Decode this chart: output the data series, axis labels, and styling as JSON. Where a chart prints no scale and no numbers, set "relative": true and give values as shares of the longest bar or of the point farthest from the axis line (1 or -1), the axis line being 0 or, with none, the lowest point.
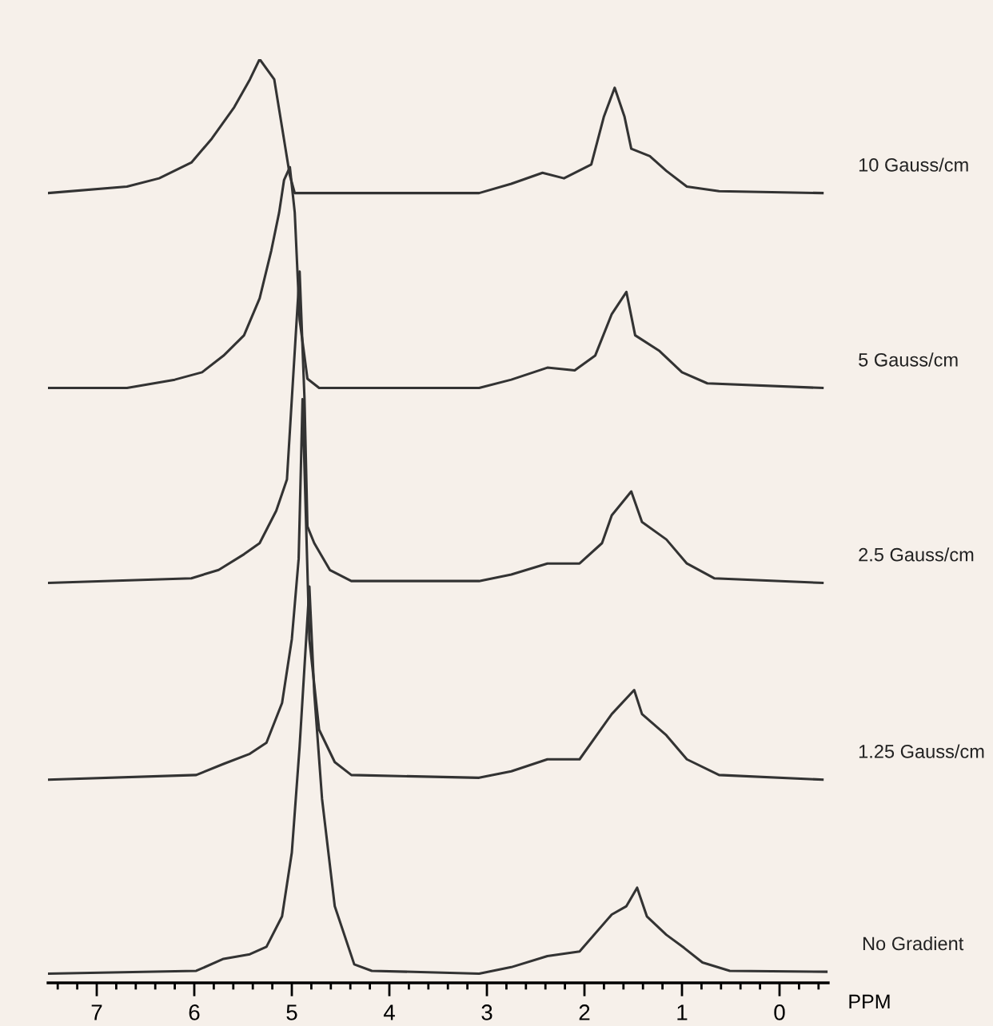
{
  "chart_data": {
    "type": "line",
    "relative": true,
    "xlabel": "PPM",
    "xlim": [
      7.5,
      -0.5
    ],
    "xticks": [
      {
        "value": 7.4,
        "label": null
      },
      {
        "value": 7.2,
        "label": null
      },
      7,
      {
        "value": 6.8,
        "label": null
      },
      {
        "value": 6.6,
        "label": null
      },
      {
        "value": 6.4,
        "label": null
      },
      {
        "value": 6.2,
        "label": null
      },
      6,
      {
        "value": 5.8,
        "label": null
      },
      {
        "value": 5.6,
        "label": null
      },
      {
        "value": 5.4,
        "label": null
      },
      {
        "value": 5.2,
        "label": null
      },
      5,
      {
        "value": 4.8,
        "label": null
      },
      {
        "value": 4.6,
        "label": null
      },
      {
        "value": 4.4,
        "label": null
      },
      {
        "value": 4.2,
        "label": null
      },
      4,
      {
        "value": 3.8,
        "label": null
      },
      {
        "value": 3.6,
        "label": null
      },
      {
        "value": 3.4,
        "label": null
      },
      {
        "value": 3.2,
        "label": null
      },
      3,
      {
        "value": 2.8,
        "label": null
      },
      {
        "value": 2.6,
        "label": null
      },
      {
        "value": 2.4,
        "label": null
      },
      {
        "value": 2.2,
        "label": null
      },
      2,
      {
        "value": 1.8,
        "label": null
      },
      {
        "value": 1.6,
        "label": null
      },
      {
        "value": 1.4,
        "label": null
      },
      {
        "value": 1.2,
        "label": null
      },
      1,
      {
        "value": 0.8,
        "label": null
      },
      {
        "value": 0.6,
        "label": null
      },
      {
        "value": 0.4,
        "label": null
      },
      {
        "value": 0.2,
        "label": null
      },
      0,
      {
        "value": -0.2,
        "label": null
      },
      {
        "value": -0.4,
        "label": null
      }
    ],
    "tick_labels": "x",
    "legend": false,
    "series": [
      {
        "name": "10 Gauss/cm",
        "color": "#333333",
        "x": [
          7.5,
          6.69,
          6.36,
          6.03,
          5.82,
          5.59,
          5.43,
          5.33,
          5.18,
          5.1,
          5.02,
          4.97,
          3.08,
          2.75,
          2.43,
          2.21,
          1.93,
          1.8,
          1.69,
          1.59,
          1.52,
          1.33,
          1.16,
          0.95,
          0.62,
          -0.44
        ],
        "values": [
          0.855,
          0.862,
          0.871,
          0.888,
          0.914,
          0.948,
          0.978,
          1.0,
          0.978,
          0.926,
          0.874,
          0.855,
          0.855,
          0.865,
          0.877,
          0.871,
          0.886,
          0.938,
          0.969,
          0.938,
          0.903,
          0.895,
          0.879,
          0.862,
          0.857,
          0.855
        ]
      },
      {
        "name": "5 Gauss/cm",
        "color": "#333333",
        "x": [
          7.5,
          6.69,
          6.2,
          5.92,
          5.7,
          5.49,
          5.33,
          5.21,
          5.13,
          5.08,
          5.02,
          4.97,
          4.92,
          4.84,
          4.72,
          3.08,
          2.75,
          2.38,
          2.1,
          1.89,
          1.72,
          1.57,
          1.48,
          1.23,
          1.0,
          0.74,
          -0.44
        ],
        "values": [
          0.644,
          0.644,
          0.653,
          0.661,
          0.679,
          0.701,
          0.741,
          0.793,
          0.834,
          0.869,
          0.883,
          0.834,
          0.718,
          0.654,
          0.644,
          0.644,
          0.653,
          0.666,
          0.663,
          0.679,
          0.724,
          0.748,
          0.701,
          0.684,
          0.661,
          0.649,
          0.644
        ]
      },
      {
        "name": "2.5 Gauss/cm",
        "color": "#333333",
        "x": [
          7.5,
          6.03,
          5.75,
          5.49,
          5.33,
          5.16,
          5.05,
          5.0,
          4.92,
          4.87,
          4.84,
          4.77,
          4.61,
          4.39,
          3.08,
          2.75,
          2.38,
          2.05,
          1.82,
          1.72,
          1.52,
          1.41,
          1.16,
          0.95,
          0.67,
          -0.44
        ],
        "values": [
          0.433,
          0.438,
          0.447,
          0.464,
          0.476,
          0.511,
          0.545,
          0.632,
          0.77,
          0.632,
          0.494,
          0.476,
          0.447,
          0.435,
          0.435,
          0.442,
          0.454,
          0.454,
          0.476,
          0.506,
          0.532,
          0.499,
          0.48,
          0.454,
          0.438,
          0.433
        ]
      },
      {
        "name": "1.25 Gauss/cm",
        "color": "#333333",
        "x": [
          7.5,
          5.98,
          5.7,
          5.43,
          5.26,
          5.1,
          5.0,
          4.93,
          4.89,
          4.82,
          4.72,
          4.56,
          4.39,
          3.08,
          2.75,
          2.38,
          2.05,
          1.72,
          1.49,
          1.41,
          1.16,
          0.95,
          0.62,
          -0.44
        ],
        "values": [
          0.22,
          0.225,
          0.237,
          0.248,
          0.26,
          0.303,
          0.372,
          0.459,
          0.632,
          0.372,
          0.274,
          0.239,
          0.225,
          0.222,
          0.229,
          0.242,
          0.242,
          0.291,
          0.317,
          0.291,
          0.268,
          0.242,
          0.225,
          0.22
        ]
      },
      {
        "name": "No Gradient",
        "color": "#333333",
        "x": [
          7.5,
          5.98,
          5.7,
          5.43,
          5.26,
          5.1,
          5.0,
          4.92,
          4.82,
          4.77,
          4.69,
          4.56,
          4.36,
          4.18,
          3.08,
          2.75,
          2.38,
          2.05,
          1.72,
          1.57,
          1.46,
          1.36,
          1.16,
          0.98,
          0.79,
          0.51,
          -0.48
        ],
        "values": [
          0.01,
          0.013,
          0.026,
          0.031,
          0.039,
          0.072,
          0.141,
          0.256,
          0.429,
          0.314,
          0.199,
          0.083,
          0.02,
          0.013,
          0.01,
          0.017,
          0.029,
          0.034,
          0.074,
          0.083,
          0.103,
          0.072,
          0.052,
          0.038,
          0.022,
          0.013,
          0.012
        ]
      }
    ]
  }
}
